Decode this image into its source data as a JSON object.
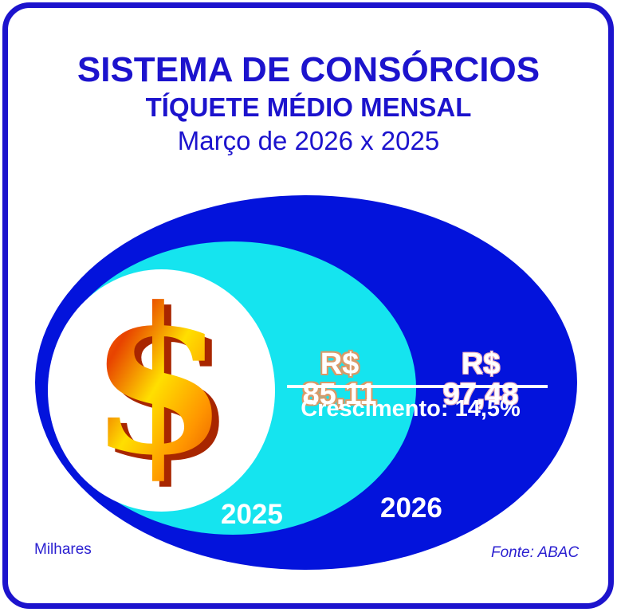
{
  "header": {
    "title": "SISTEMA DE CONSÓRCIOS",
    "subtitle": "TÍQUETE MÉDIO MENSAL",
    "period": "Março de 2026 x 2025"
  },
  "figure": {
    "value_2025": "R$ 85,11",
    "value_2026": "R$ 97,48",
    "growth_label": "Crescimento: 14,5%",
    "label_2025": "2025",
    "label_2026": "2026",
    "dollar_glyph": "$"
  },
  "footer": {
    "scale_note": "Milhares",
    "source": "Fonte: ABAC"
  },
  "colors": {
    "frame_and_text_blue": "#1c13cd",
    "outer_ellipse_blue": "#0313dc",
    "inner_ellipse_cyan": "#15e4ef",
    "core_white": "#ffffff",
    "value_2025_outline_tan": "#d89a68",
    "dollar_orange": "#e84300",
    "dollar_yellow": "#ffdf00"
  },
  "chart_data": {
    "type": "area",
    "representation": "nested-proportional-ellipses",
    "title": "SISTEMA DE CONSÓRCIOS — TÍQUETE MÉDIO MENSAL",
    "subtitle": "Março de 2026 x 2025",
    "categories": [
      "2025",
      "2026"
    ],
    "series": [
      {
        "name": "Tíquete médio mensal (R$)",
        "values": [
          85.11,
          97.48
        ]
      }
    ],
    "data_labels": [
      "R$ 85,11",
      "R$ 97,48"
    ],
    "growth_pct": 14.5,
    "growth_annotation": "Crescimento: 14,5%",
    "unit": "R$",
    "scale": "Milhares",
    "source": "Fonte: ABAC",
    "legend_position": "inside-figure",
    "grid": false
  }
}
